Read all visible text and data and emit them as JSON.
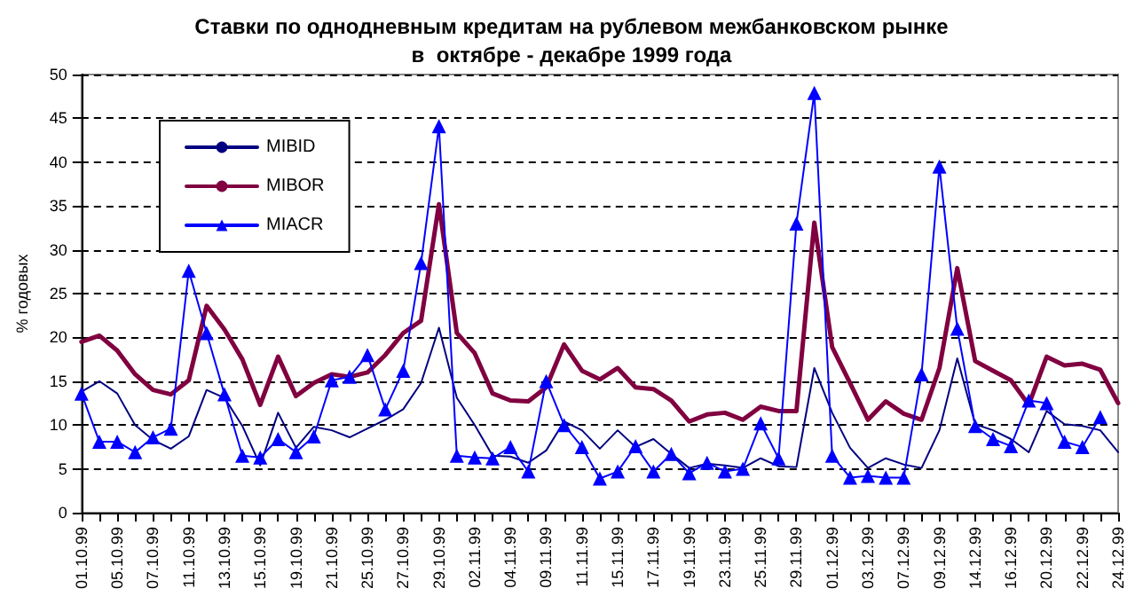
{
  "chart_data": {
    "type": "line",
    "title": "Ставки по однодневным кредитам на рублевом межбанковском рынке",
    "subtitle": "в  октябре - декабре 1999 года",
    "ylabel": "% годовых",
    "categories": [
      "01.10.99",
      null,
      "05.10.99",
      null,
      "07.10.99",
      null,
      "11.10.99",
      null,
      "13.10.99",
      null,
      "15.10.99",
      null,
      "19.10.99",
      null,
      "21.10.99",
      null,
      "25.10.99",
      null,
      "27.10.99",
      null,
      "29.10.99",
      null,
      "02.11.99",
      null,
      "04.11.99",
      null,
      "09.11.99",
      null,
      "11.11.99",
      null,
      "15.11.99",
      null,
      "17.11.99",
      null,
      "19.11.99",
      null,
      "23.11.99",
      null,
      "25.11.99",
      null,
      "29.11.99",
      null,
      "01.12.99",
      null,
      "03.12.99",
      null,
      "07.12.99",
      null,
      "09.12.99",
      null,
      "14.12.99",
      null,
      "16.12.99",
      null,
      "20.12.99",
      null,
      "22.12.99",
      null,
      "24.12.99"
    ],
    "series": [
      {
        "name": "MIBID",
        "color": "#000080",
        "marker": "none",
        "values": [
          13.8,
          15.0,
          13.6,
          10.0,
          8.3,
          7.3,
          8.7,
          14.0,
          13.1,
          9.9,
          5.4,
          11.4,
          7.4,
          9.8,
          9.4,
          8.6,
          9.6,
          10.6,
          11.8,
          14.8,
          21.1,
          13.1,
          10.0,
          6.5,
          6.4,
          5.7,
          7.1,
          10.4,
          9.4,
          7.3,
          9.4,
          7.5,
          8.4,
          6.7,
          5.1,
          5.6,
          5.4,
          5.1,
          6.2,
          5.3,
          5.2,
          16.5,
          11.4,
          7.4,
          5.1,
          6.2,
          5.5,
          5.1,
          9.4,
          17.6,
          10.1,
          9.4,
          8.4,
          6.9,
          11.6,
          10.1,
          9.9,
          9.4,
          6.9
        ]
      },
      {
        "name": "MIBOR",
        "color": "#800040",
        "marker": "none",
        "values": [
          19.5,
          20.2,
          18.5,
          15.8,
          14.0,
          13.5,
          15.1,
          23.6,
          20.9,
          17.5,
          12.3,
          17.8,
          13.3,
          14.8,
          15.8,
          15.5,
          16.0,
          18.0,
          20.5,
          21.9,
          35.2,
          20.5,
          18.2,
          13.6,
          12.8,
          12.7,
          14.3,
          19.2,
          16.2,
          15.2,
          16.5,
          14.3,
          14.1,
          12.8,
          10.4,
          11.2,
          11.4,
          10.6,
          12.1,
          11.6,
          11.6,
          33.1,
          18.9,
          14.8,
          10.6,
          12.7,
          11.3,
          10.6,
          16.5,
          27.9,
          17.3,
          16.2,
          15.1,
          12.3,
          17.8,
          16.8,
          17.0,
          16.3,
          12.5
        ]
      },
      {
        "name": "MIACR",
        "color": "#0000ff",
        "marker": "triangle",
        "values": [
          13.6,
          8.1,
          8.1,
          6.9,
          8.6,
          9.6,
          27.6,
          20.5,
          13.5,
          6.5,
          6.3,
          8.4,
          6.9,
          8.7,
          15.1,
          15.5,
          18.0,
          11.8,
          16.2,
          28.5,
          44.1,
          6.5,
          6.3,
          6.2,
          7.5,
          4.7,
          15.0,
          10.0,
          7.5,
          3.9,
          4.7,
          7.6,
          4.7,
          6.7,
          4.5,
          5.7,
          4.7,
          5.0,
          10.2,
          6.2,
          33.0,
          47.9,
          6.5,
          4.0,
          4.2,
          4.0,
          4.0,
          15.8,
          39.5,
          21.0,
          9.9,
          8.4,
          7.6,
          12.8,
          12.5,
          8.1,
          7.5,
          10.9,
          null
        ]
      }
    ],
    "ylim": [
      0,
      50
    ],
    "yticks": [
      0,
      5,
      10,
      15,
      20,
      25,
      30,
      35,
      40,
      45,
      50
    ],
    "grid": "y",
    "legend": "top left",
    "line_style": "solid"
  }
}
